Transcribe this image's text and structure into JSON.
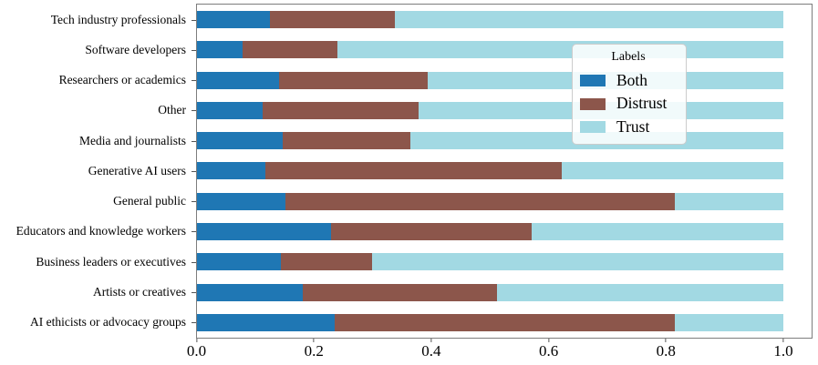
{
  "chart_data": {
    "type": "bar",
    "orientation": "horizontal",
    "stacked": true,
    "title": "",
    "xlabel": "",
    "ylabel": "",
    "grid": false,
    "xlim": [
      0.0,
      1.048
    ],
    "x_ticks": [
      {
        "value": 0.0,
        "label": "0.0"
      },
      {
        "value": 0.2,
        "label": "0.2"
      },
      {
        "value": 0.4,
        "label": "0.4"
      },
      {
        "value": 0.6,
        "label": "0.6"
      },
      {
        "value": 0.8,
        "label": "0.8"
      },
      {
        "value": 1.0,
        "label": "1.0"
      }
    ],
    "categories": [
      "Tech industry professionals",
      "Software developers",
      "Researchers or academics",
      "Other",
      "Media and journalists",
      "Generative AI users",
      "General public",
      "Educators and knowledge workers",
      "Business leaders or executives",
      "Artists or creatives",
      "AI ethicists or advocacy groups"
    ],
    "series": [
      {
        "name": "Both",
        "color": "#1f77b4",
        "values": [
          0.124,
          0.078,
          0.14,
          0.112,
          0.146,
          0.117,
          0.151,
          0.228,
          0.143,
          0.181,
          0.235
        ]
      },
      {
        "name": "Distrust",
        "color": "#8c564b",
        "values": [
          0.214,
          0.162,
          0.253,
          0.265,
          0.218,
          0.504,
          0.663,
          0.342,
          0.156,
          0.331,
          0.58
        ]
      },
      {
        "name": "Trust",
        "color": "#a2d9e3",
        "values": [
          0.662,
          0.76,
          0.607,
          0.623,
          0.636,
          0.379,
          0.186,
          0.43,
          0.701,
          0.488,
          0.185
        ]
      }
    ],
    "legend": {
      "title": "Labels",
      "position": "upper-right-inside"
    }
  }
}
